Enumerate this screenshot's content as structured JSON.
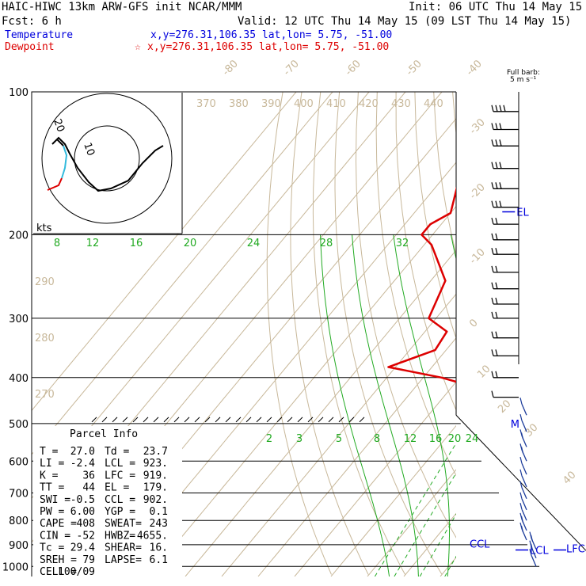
{
  "header": {
    "title": "HAIC-HIWC 13km ARW-GFS init   NCAR/MMM",
    "init": "Init: 06 UTC Thu 14 May 15",
    "fcst": "Fcst:    6 h",
    "valid": "Valid: 12 UTC Thu 14 May 15 (09 LST Thu 14 May 15)",
    "temp_label": "Temperature",
    "temp_coords": "x,y=276.31,106.35   lat,lon=  5.75, -51.00",
    "dew_label": "Dewpoint",
    "dew_coords": "x,y=276.31,106.35   lat,lon=  5.75, -51.00",
    "barb_title": "Full barb:",
    "barb_units": "5 m s⁻¹",
    "temp_color": "#0000dd",
    "dew_color": "#dd0000",
    "mixing_color": "#22aa22",
    "adiabat_color": "#c8b89a"
  },
  "parcel_info": {
    "title": "Parcel Info",
    "rows": [
      [
        "T  =",
        "27.0",
        "Td =",
        "23.7"
      ],
      [
        "LI =",
        "-2.4",
        "LCL =",
        "923."
      ],
      [
        "K  =",
        "36",
        "LFC =",
        "919."
      ],
      [
        "TT =",
        "44",
        "EL  =",
        "179."
      ],
      [
        "SWI =",
        "-0.5",
        "CCL =",
        "902."
      ],
      [
        "PW =",
        "6.00",
        "YGP =",
        "0.1"
      ],
      [
        "CAPE =",
        "408",
        "SWEAT=",
        "243"
      ],
      [
        "CIN =",
        "-52",
        "HWBZ=",
        "4655."
      ],
      [
        "Tc =",
        "29.4",
        "SHEAR=",
        "16."
      ],
      [
        "SREH =",
        "79",
        "LAPSE=",
        "6.1"
      ],
      [
        "CELL =",
        "100/09",
        "",
        ""
      ]
    ]
  },
  "hodograph": {
    "ring_labels": [
      "20",
      "10"
    ],
    "units": "kts"
  },
  "chart_data": {
    "type": "line",
    "title": "",
    "xlabel": "",
    "ylabel": "",
    "pressure_levels": [
      "100",
      "200",
      "300",
      "400",
      "500",
      "600",
      "700",
      "800",
      "900",
      "1000"
    ],
    "isotherm_labels": [
      "-80",
      "-70",
      "-60",
      "-50",
      "-40",
      "-30",
      "-20",
      "-10",
      "0",
      "10",
      "20",
      "30",
      "40"
    ],
    "theta_labels": [
      "370",
      "380",
      "390",
      "400",
      "410",
      "420",
      "430",
      "440"
    ],
    "theta_low_labels": [
      "290",
      "280",
      "270"
    ],
    "mixing_top_labels": [
      "8",
      "12",
      "16",
      "20",
      "24",
      "28",
      "32"
    ],
    "mixing_low_labels": [
      "2",
      "3",
      "5",
      "8",
      "12",
      "16",
      "20",
      "24"
    ],
    "markers": {
      "el": "EL",
      "lcl": "LCL",
      "lfc": "LFC",
      "ccl": "CCL",
      "m": "M"
    },
    "series": [
      {
        "name": "Temperature",
        "points": [
          [
            100,
            -73.5
          ],
          [
            120,
            -69.5
          ],
          [
            150,
            -63
          ],
          [
            180,
            -56.5
          ],
          [
            200,
            -52.5
          ],
          [
            250,
            -42
          ],
          [
            300,
            -33.5
          ],
          [
            350,
            -25.5
          ],
          [
            400,
            -19
          ],
          [
            450,
            -13.3
          ],
          [
            500,
            -8.6
          ],
          [
            550,
            -4.2
          ],
          [
            600,
            0.4
          ],
          [
            650,
            4.6
          ],
          [
            700,
            8.5
          ],
          [
            750,
            12.2
          ],
          [
            800,
            15.6
          ],
          [
            850,
            18.7
          ],
          [
            900,
            21.8
          ],
          [
            930,
            24.2
          ],
          [
            960,
            25.2
          ],
          [
            1000,
            27
          ]
        ]
      },
      {
        "name": "Dewpoint",
        "points": [
          [
            100,
            -79
          ],
          [
            150,
            -76
          ],
          [
            180,
            -70
          ],
          [
            190,
            -73
          ],
          [
            200,
            -73
          ],
          [
            210,
            -68
          ],
          [
            250,
            -56
          ],
          [
            300,
            -52
          ],
          [
            320,
            -44
          ],
          [
            350,
            -43
          ],
          [
            380,
            -52
          ],
          [
            400,
            -35
          ],
          [
            420,
            -23
          ],
          [
            450,
            -17
          ],
          [
            480,
            -12
          ],
          [
            500,
            -9.5
          ],
          [
            550,
            -4.5
          ],
          [
            600,
            -0.5
          ],
          [
            650,
            3.5
          ],
          [
            700,
            7.5
          ],
          [
            750,
            11.5
          ],
          [
            800,
            15
          ],
          [
            850,
            17.5
          ],
          [
            900,
            19
          ],
          [
            930,
            20.3
          ],
          [
            960,
            22
          ],
          [
            1000,
            23.7
          ]
        ]
      }
    ],
    "wind_barbs_ms": [
      [
        110,
        18
      ],
      [
        120,
        17
      ],
      [
        130,
        16
      ],
      [
        145,
        15
      ],
      [
        160,
        14
      ],
      [
        175,
        13
      ],
      [
        190,
        12
      ],
      [
        205,
        11
      ],
      [
        220,
        10
      ],
      [
        240,
        9
      ],
      [
        260,
        8
      ],
      [
        280,
        8
      ],
      [
        300,
        9
      ],
      [
        330,
        10
      ],
      [
        360,
        9
      ],
      [
        400,
        8
      ],
      [
        440,
        7
      ],
      [
        480,
        6
      ],
      [
        520,
        7
      ],
      [
        560,
        8
      ],
      [
        600,
        8
      ],
      [
        640,
        7
      ],
      [
        680,
        6
      ],
      [
        720,
        6
      ],
      [
        760,
        7
      ],
      [
        800,
        7
      ],
      [
        840,
        8
      ],
      [
        880,
        9
      ],
      [
        920,
        9
      ],
      [
        960,
        8
      ],
      [
        1000,
        7
      ]
    ]
  }
}
